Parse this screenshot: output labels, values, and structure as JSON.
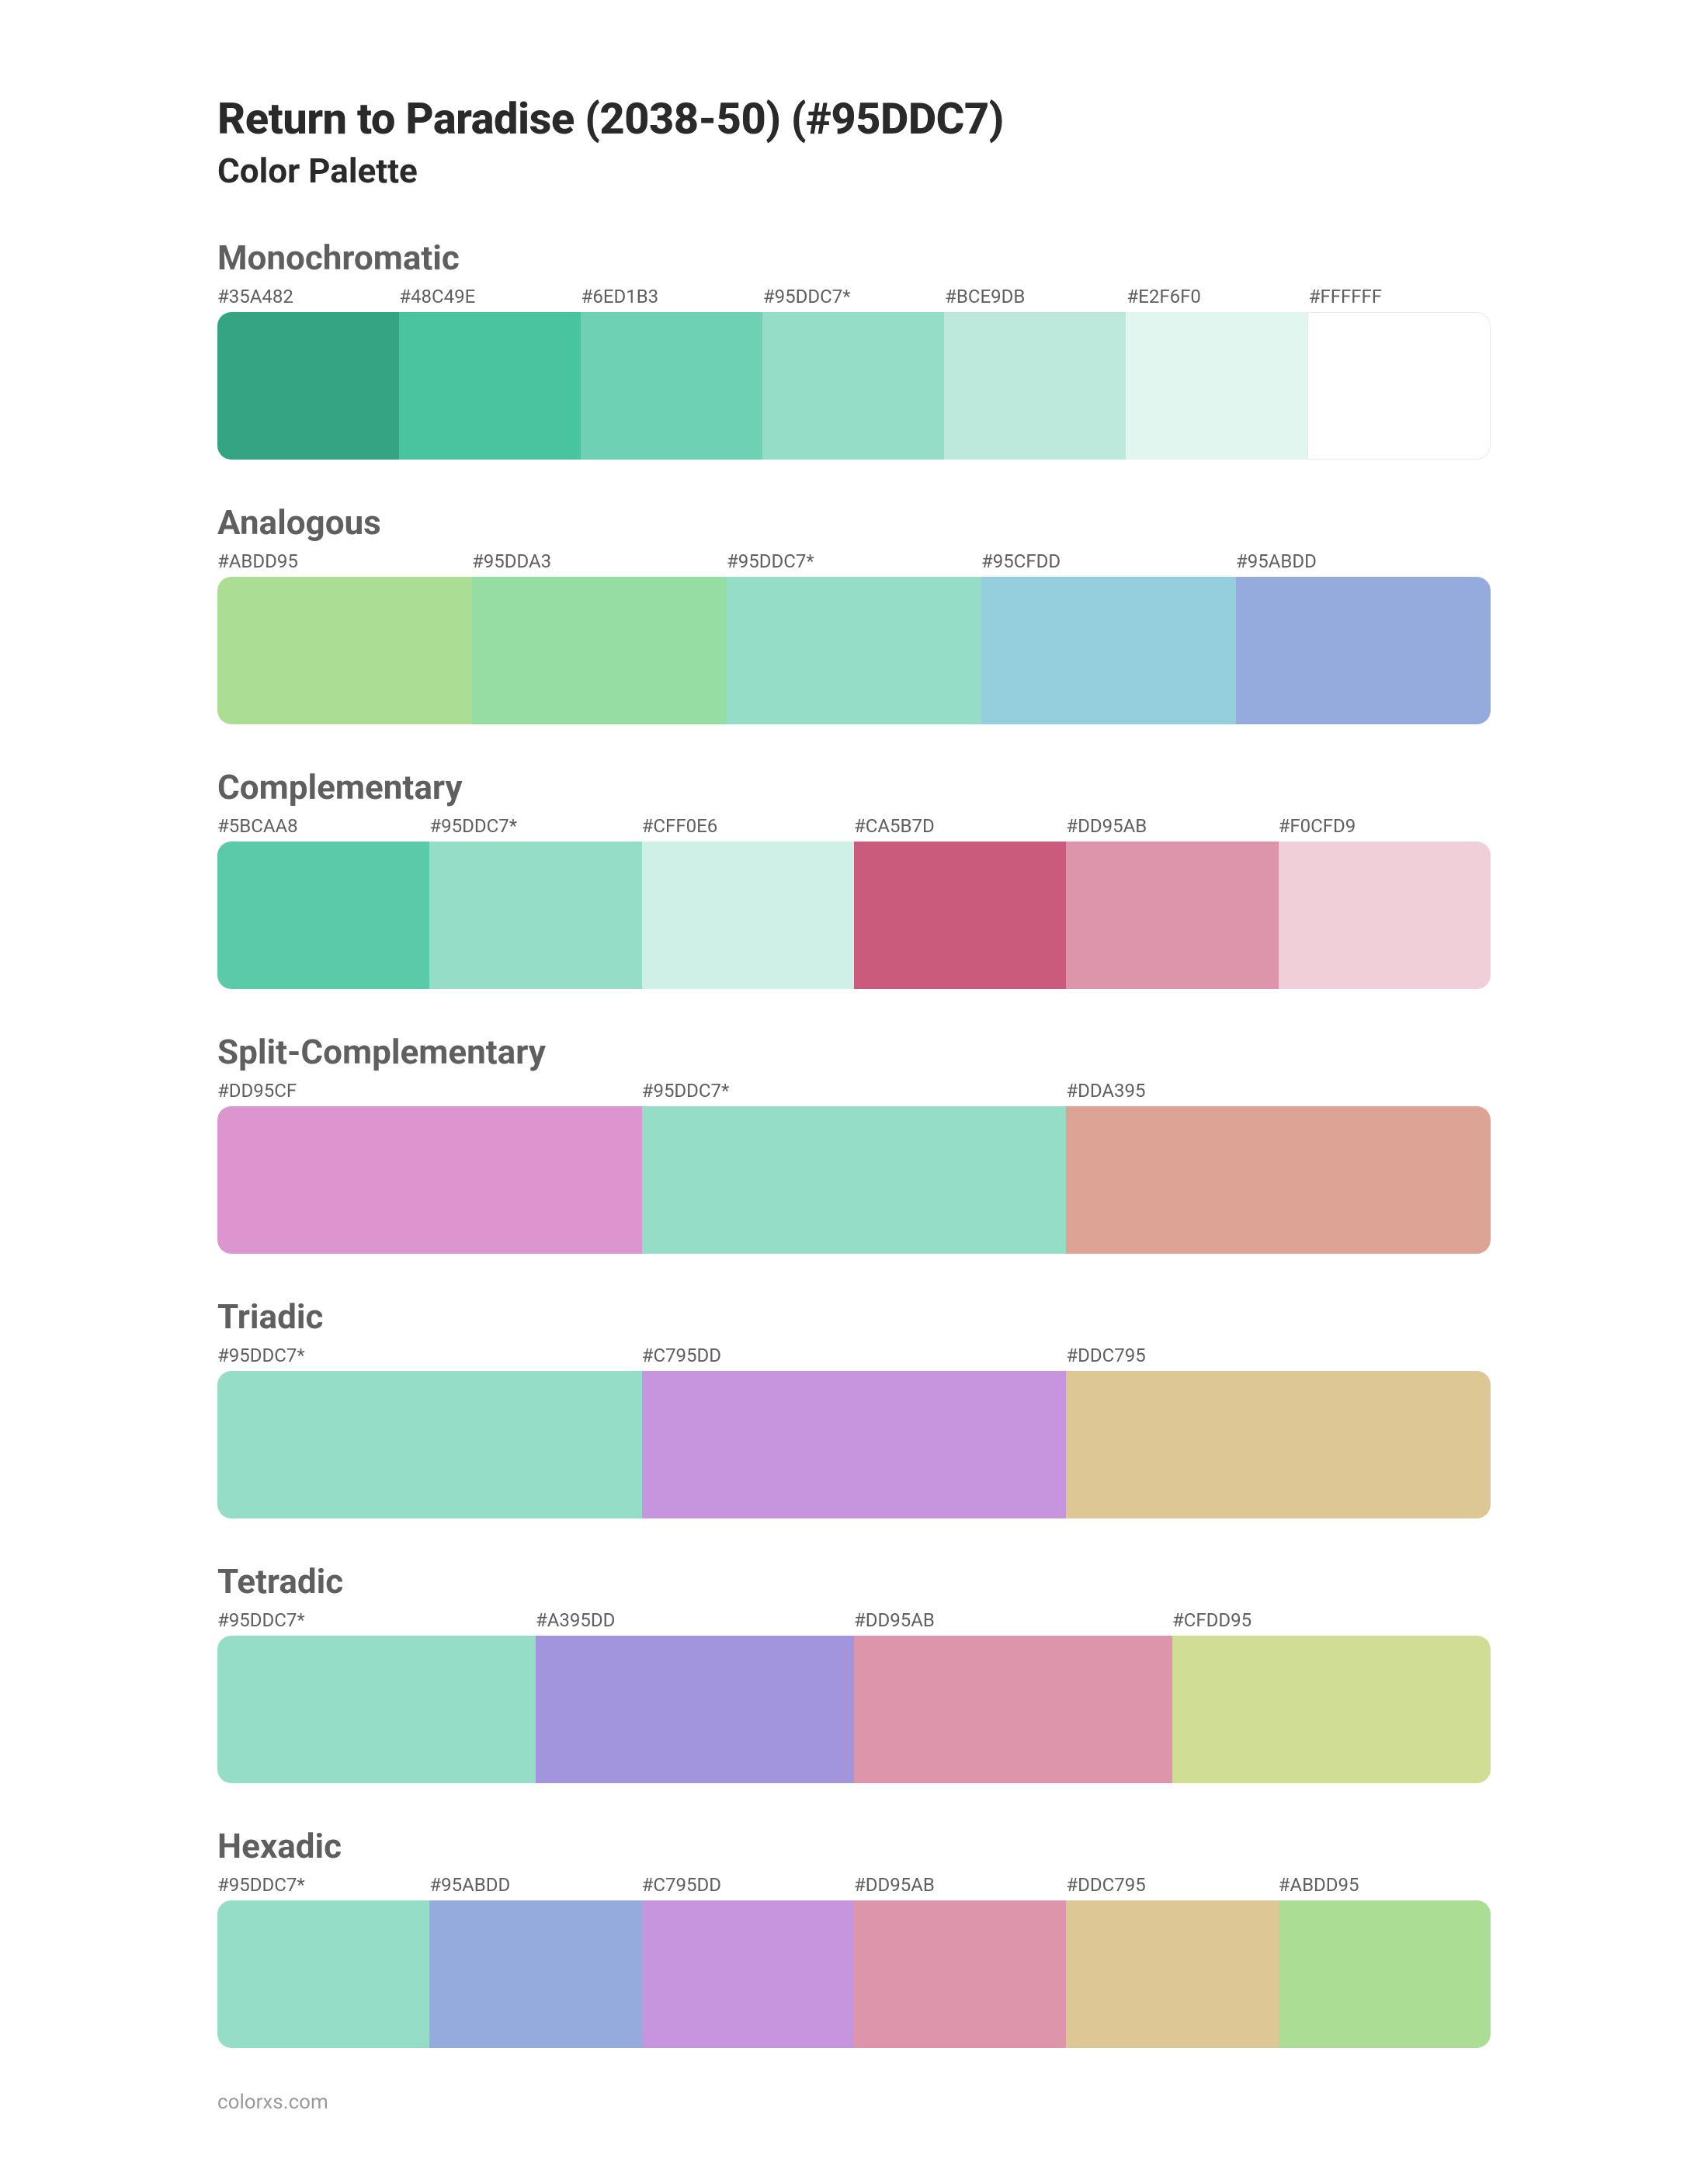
{
  "title": "Return to Paradise (2038-50) (#95DDC7)",
  "subtitle": "Color Palette",
  "footer": "colorxs.com",
  "sections": [
    {
      "name": "Monochromatic",
      "swatches": [
        {
          "label": "#35A482",
          "color": "#35A482"
        },
        {
          "label": "#48C49E",
          "color": "#48C49E"
        },
        {
          "label": "#6ED1B3",
          "color": "#6ED1B3"
        },
        {
          "label": "#95DDC7*",
          "color": "#95DDC7"
        },
        {
          "label": "#BCE9DB",
          "color": "#BCE9DB"
        },
        {
          "label": "#E2F6F0",
          "color": "#E2F6F0"
        },
        {
          "label": "#FFFFFF",
          "color": "#FFFFFF",
          "border": true
        }
      ]
    },
    {
      "name": "Analogous",
      "swatches": [
        {
          "label": "#ABDD95",
          "color": "#ABDD95"
        },
        {
          "label": "#95DDA3",
          "color": "#95DDA3"
        },
        {
          "label": "#95DDC7*",
          "color": "#95DDC7"
        },
        {
          "label": "#95CFDD",
          "color": "#95CFDD"
        },
        {
          "label": "#95ABDD",
          "color": "#95ABDD"
        }
      ]
    },
    {
      "name": "Complementary",
      "swatches": [
        {
          "label": "#5BCAA8",
          "color": "#5BCAA8"
        },
        {
          "label": "#95DDC7*",
          "color": "#95DDC7"
        },
        {
          "label": "#CFF0E6",
          "color": "#CFF0E6"
        },
        {
          "label": "#CA5B7D",
          "color": "#CA5B7D"
        },
        {
          "label": "#DD95AB",
          "color": "#DD95AB"
        },
        {
          "label": "#F0CFD9",
          "color": "#F0CFD9"
        }
      ]
    },
    {
      "name": "Split-Complementary",
      "swatches": [
        {
          "label": "#DD95CF",
          "color": "#DD95CF"
        },
        {
          "label": "#95DDC7*",
          "color": "#95DDC7"
        },
        {
          "label": "#DDA395",
          "color": "#DDA395"
        }
      ]
    },
    {
      "name": "Triadic",
      "swatches": [
        {
          "label": "#95DDC7*",
          "color": "#95DDC7"
        },
        {
          "label": "#C795DD",
          "color": "#C795DD"
        },
        {
          "label": "#DDC795",
          "color": "#DDC795"
        }
      ]
    },
    {
      "name": "Tetradic",
      "swatches": [
        {
          "label": "#95DDC7*",
          "color": "#95DDC7"
        },
        {
          "label": "#A395DD",
          "color": "#A395DD"
        },
        {
          "label": "#DD95AB",
          "color": "#DD95AB"
        },
        {
          "label": "#CFDD95",
          "color": "#CFDD95"
        }
      ]
    },
    {
      "name": "Hexadic",
      "swatches": [
        {
          "label": "#95DDC7*",
          "color": "#95DDC7"
        },
        {
          "label": "#95ABDD",
          "color": "#95ABDD"
        },
        {
          "label": "#C795DD",
          "color": "#C795DD"
        },
        {
          "label": "#DD95AB",
          "color": "#DD95AB"
        },
        {
          "label": "#DDC795",
          "color": "#DDC795"
        },
        {
          "label": "#ABDD95",
          "color": "#ABDD95"
        }
      ]
    }
  ]
}
